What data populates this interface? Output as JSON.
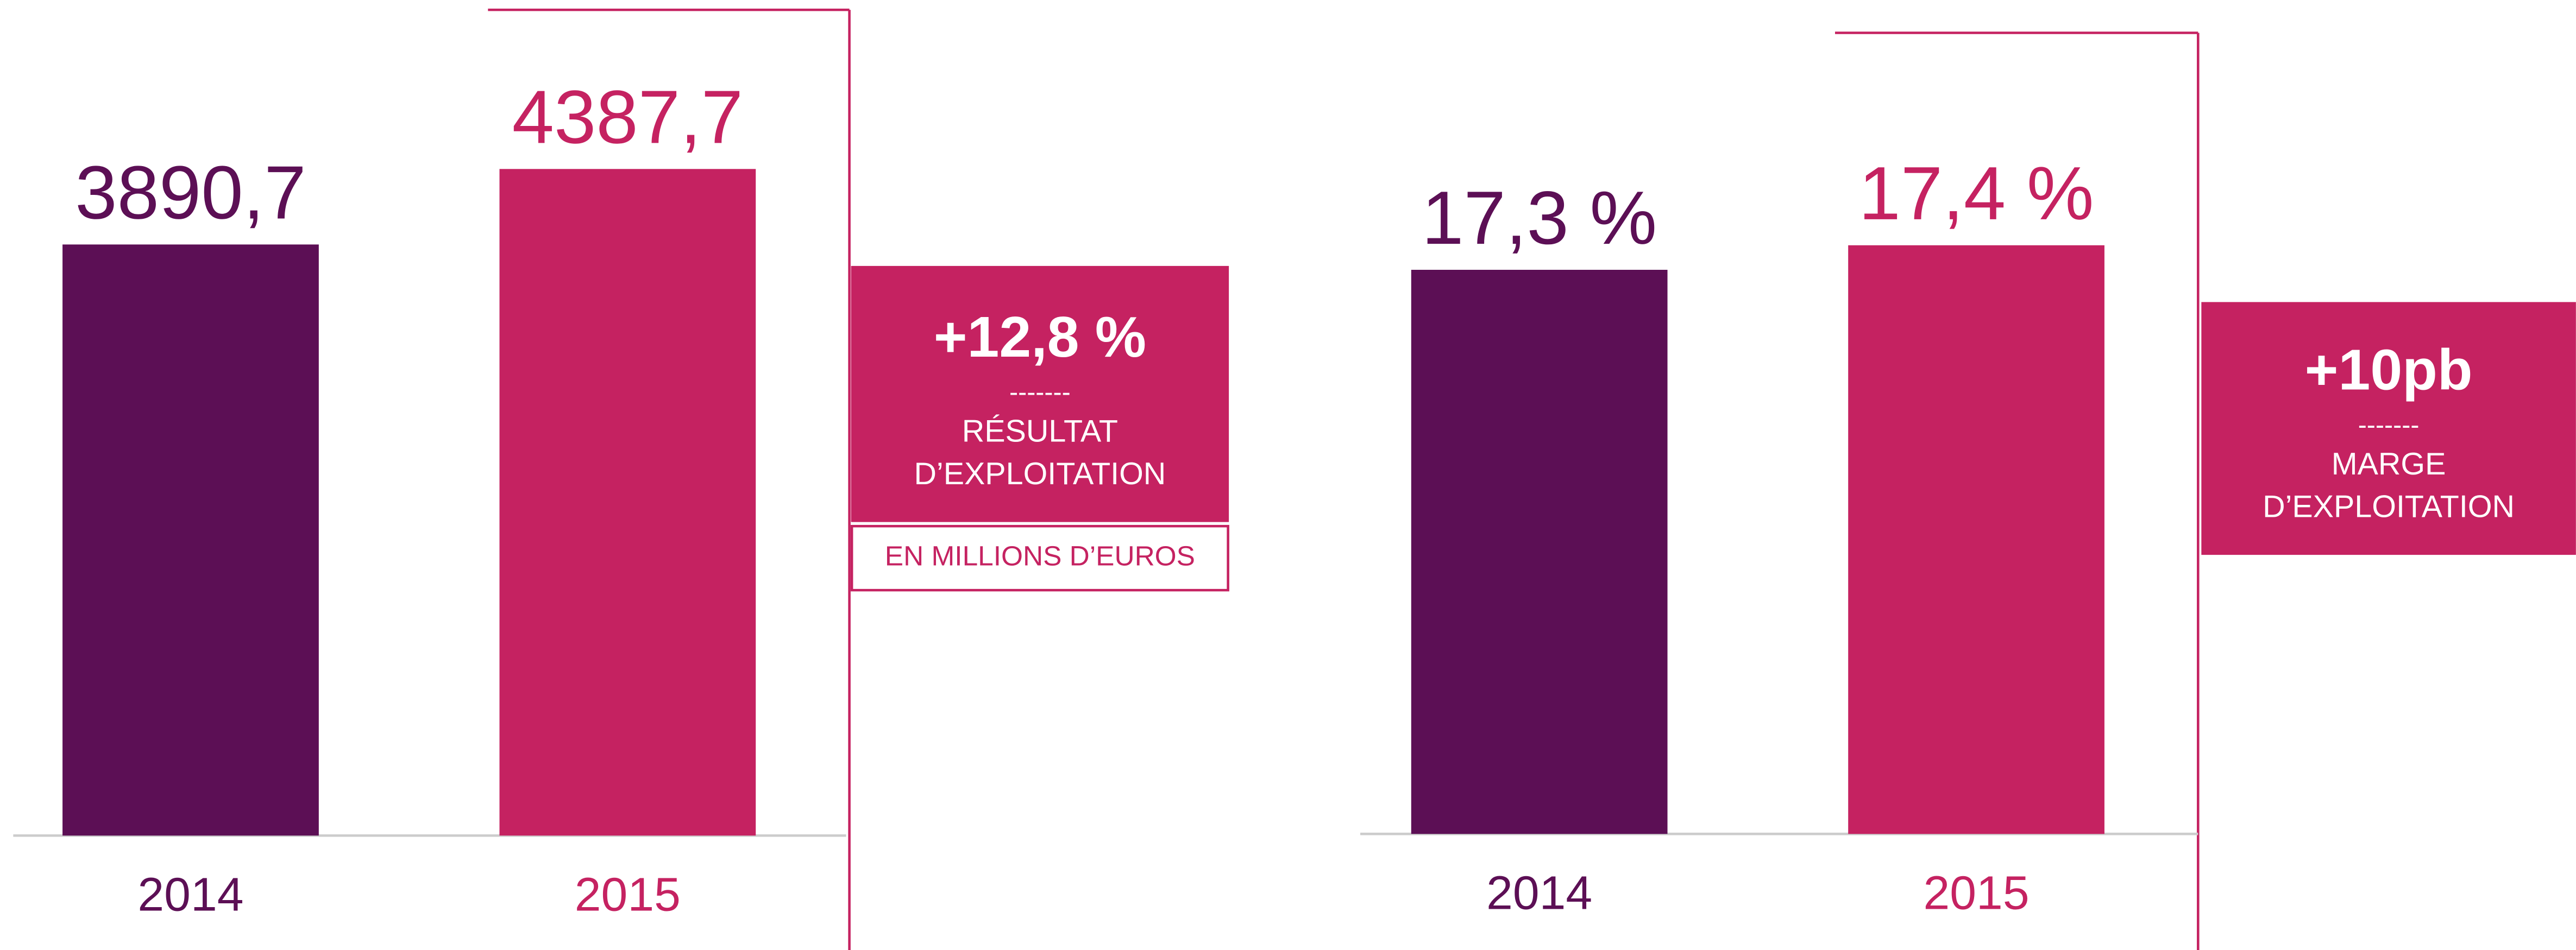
{
  "chart_data": [
    {
      "type": "bar",
      "categories": [
        "2014",
        "2015"
      ],
      "values": [
        3890.7,
        4387.7
      ],
      "value_labels": [
        "3890,7",
        "4387,7"
      ],
      "colors": [
        "#5c0f55",
        "#c52261"
      ],
      "ylim": [
        0,
        5500
      ],
      "annotation": {
        "headline": "+12,8 %",
        "separator": "-------",
        "label_lines": [
          "RÉSULTAT",
          "D’EXPLOITATION"
        ]
      },
      "unit_note": "EN MILLIONS D’EUROS"
    },
    {
      "type": "bar",
      "categories": [
        "2014",
        "2015"
      ],
      "values": [
        17.3,
        17.4
      ],
      "value_labels": [
        "17,3 %",
        "17,4 %"
      ],
      "colors": [
        "#5c0f55",
        "#c52261"
      ],
      "ylim": [
        15,
        18.4
      ],
      "annotation": {
        "headline": "+10pb",
        "separator": "-------",
        "label_lines": [
          "MARGE",
          "D’EXPLOITATION"
        ]
      }
    }
  ]
}
